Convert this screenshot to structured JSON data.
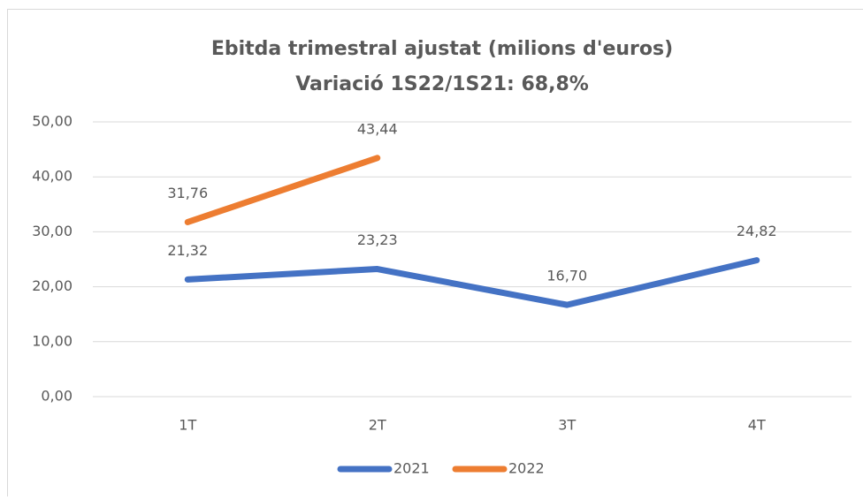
{
  "chart_data": {
    "type": "line",
    "title": "Ebitda trimestral ajustat (milions d'euros)",
    "subtitle": "Variació 1S22/1S21: 68,8%",
    "categories": [
      "1T",
      "2T",
      "3T",
      "4T"
    ],
    "series": [
      {
        "name": "2021",
        "color": "#4472c4",
        "values": [
          21.32,
          23.23,
          16.7,
          24.82
        ],
        "value_labels": [
          "21,32",
          "23,23",
          "16,70",
          "24,82"
        ]
      },
      {
        "name": "2022",
        "color": "#ed7d31",
        "values": [
          31.76,
          43.44,
          null,
          null
        ],
        "value_labels": [
          "31,76",
          "43,44",
          null,
          null
        ]
      }
    ],
    "ylim": [
      0,
      50
    ],
    "yticks": [
      {
        "value": 0,
        "label": "0,00"
      },
      {
        "value": 10,
        "label": "10,00"
      },
      {
        "value": 20,
        "label": "20,00"
      },
      {
        "value": 30,
        "label": "30,00"
      },
      {
        "value": 40,
        "label": "40,00"
      },
      {
        "value": 50,
        "label": "50,00"
      }
    ],
    "grid": true,
    "legend": "bottom"
  }
}
